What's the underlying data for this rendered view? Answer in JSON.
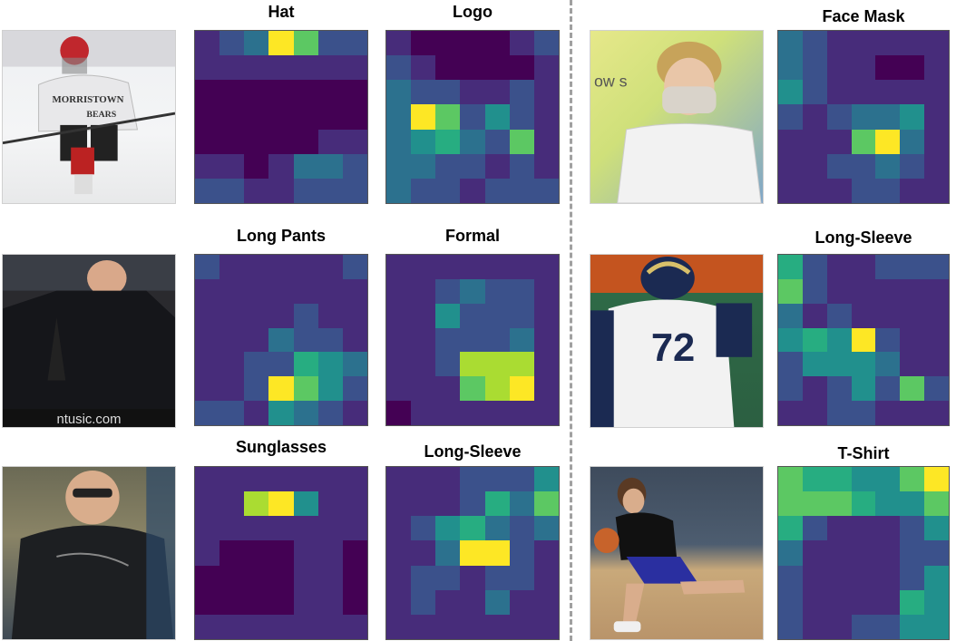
{
  "labels": {
    "r1_a": "Hat",
    "r1_b": "Logo",
    "r1_c": "Face Mask",
    "r2_a": "Long Pants",
    "r2_b": "Formal",
    "r2_c": "Long-Sleeve",
    "r3_a": "Sunglasses",
    "r3_b": "Long-Sleeve",
    "r3_c": "T-Shirt"
  },
  "photo_text": {
    "jersey": "MORRISTOWN",
    "jersey2": "BEARS",
    "number": "72",
    "watermark": "ntusic.com",
    "sign": "ow s"
  },
  "colormap": [
    "#440154",
    "#472c7a",
    "#3b518b",
    "#2c718e",
    "#21908d",
    "#27ad81",
    "#5cc863",
    "#aadc32",
    "#fde725"
  ],
  "heatmaps": {
    "hat": [
      [
        1,
        2,
        3,
        8,
        6,
        2,
        2
      ],
      [
        1,
        1,
        1,
        1,
        1,
        1,
        1
      ],
      [
        0,
        0,
        0,
        0,
        0,
        0,
        0
      ],
      [
        0,
        0,
        0,
        0,
        0,
        0,
        0
      ],
      [
        0,
        0,
        0,
        0,
        0,
        1,
        1
      ],
      [
        1,
        1,
        0,
        1,
        3,
        3,
        2
      ],
      [
        2,
        2,
        1,
        1,
        2,
        2,
        2
      ]
    ],
    "logo": [
      [
        1,
        0,
        0,
        0,
        0,
        1,
        2
      ],
      [
        2,
        1,
        0,
        0,
        0,
        0,
        1
      ],
      [
        3,
        2,
        2,
        1,
        1,
        2,
        1
      ],
      [
        3,
        8,
        6,
        2,
        4,
        2,
        1
      ],
      [
        3,
        4,
        5,
        3,
        2,
        6,
        1
      ],
      [
        3,
        3,
        2,
        2,
        1,
        2,
        1
      ],
      [
        3,
        2,
        2,
        1,
        2,
        2,
        2
      ]
    ],
    "face_mask": [
      [
        3,
        2,
        1,
        1,
        1,
        1,
        1
      ],
      [
        3,
        2,
        1,
        1,
        0,
        0,
        1
      ],
      [
        4,
        2,
        1,
        1,
        1,
        1,
        1
      ],
      [
        2,
        1,
        2,
        3,
        3,
        4,
        1
      ],
      [
        1,
        1,
        1,
        6,
        8,
        3,
        1
      ],
      [
        1,
        1,
        2,
        2,
        3,
        2,
        1
      ],
      [
        1,
        1,
        1,
        2,
        2,
        1,
        1
      ]
    ],
    "long_pants": [
      [
        2,
        1,
        1,
        1,
        1,
        1,
        2
      ],
      [
        1,
        1,
        1,
        1,
        1,
        1,
        1
      ],
      [
        1,
        1,
        1,
        1,
        2,
        1,
        1
      ],
      [
        1,
        1,
        1,
        3,
        2,
        2,
        1
      ],
      [
        1,
        1,
        2,
        2,
        5,
        4,
        3
      ],
      [
        1,
        1,
        2,
        8,
        6,
        4,
        2
      ],
      [
        2,
        2,
        1,
        4,
        3,
        2,
        1
      ]
    ],
    "formal": [
      [
        1,
        1,
        1,
        1,
        1,
        1,
        1
      ],
      [
        1,
        1,
        2,
        3,
        2,
        2,
        1
      ],
      [
        1,
        1,
        4,
        2,
        2,
        2,
        1
      ],
      [
        1,
        1,
        2,
        2,
        2,
        3,
        1
      ],
      [
        1,
        1,
        2,
        7,
        7,
        7,
        1
      ],
      [
        1,
        1,
        1,
        6,
        7,
        8,
        1
      ],
      [
        0,
        1,
        1,
        1,
        1,
        1,
        1
      ]
    ],
    "long_sleeve_r": [
      [
        5,
        2,
        1,
        1,
        2,
        2,
        2
      ],
      [
        6,
        2,
        1,
        1,
        1,
        1,
        1
      ],
      [
        3,
        1,
        2,
        1,
        1,
        1,
        1
      ],
      [
        4,
        5,
        4,
        8,
        2,
        1,
        1
      ],
      [
        2,
        4,
        4,
        4,
        3,
        1,
        1
      ],
      [
        2,
        1,
        2,
        4,
        2,
        6,
        2
      ],
      [
        1,
        1,
        2,
        2,
        1,
        1,
        1
      ]
    ],
    "sunglasses": [
      [
        1,
        1,
        1,
        1,
        1,
        1,
        1
      ],
      [
        1,
        1,
        7,
        8,
        4,
        1,
        1
      ],
      [
        1,
        1,
        1,
        1,
        1,
        1,
        1
      ],
      [
        1,
        0,
        0,
        0,
        1,
        1,
        0
      ],
      [
        0,
        0,
        0,
        0,
        1,
        1,
        0
      ],
      [
        0,
        0,
        0,
        0,
        1,
        1,
        0
      ],
      [
        1,
        1,
        1,
        1,
        1,
        1,
        1
      ]
    ],
    "long_sleeve_l": [
      [
        1,
        1,
        1,
        2,
        2,
        2,
        4
      ],
      [
        1,
        1,
        1,
        2,
        5,
        3,
        6
      ],
      [
        1,
        2,
        4,
        5,
        3,
        2,
        3
      ],
      [
        1,
        1,
        3,
        8,
        8,
        2,
        1
      ],
      [
        1,
        2,
        2,
        1,
        2,
        2,
        1
      ],
      [
        1,
        2,
        1,
        1,
        3,
        1,
        1
      ],
      [
        1,
        1,
        1,
        1,
        1,
        1,
        1
      ]
    ],
    "t_shirt": [
      [
        6,
        5,
        5,
        4,
        4,
        6,
        8
      ],
      [
        6,
        6,
        6,
        5,
        4,
        4,
        6
      ],
      [
        5,
        2,
        1,
        1,
        1,
        2,
        4
      ],
      [
        3,
        1,
        1,
        1,
        1,
        2,
        2
      ],
      [
        2,
        1,
        1,
        1,
        1,
        2,
        4
      ],
      [
        2,
        1,
        1,
        1,
        1,
        5,
        4
      ],
      [
        2,
        1,
        1,
        2,
        2,
        4,
        4
      ]
    ]
  }
}
